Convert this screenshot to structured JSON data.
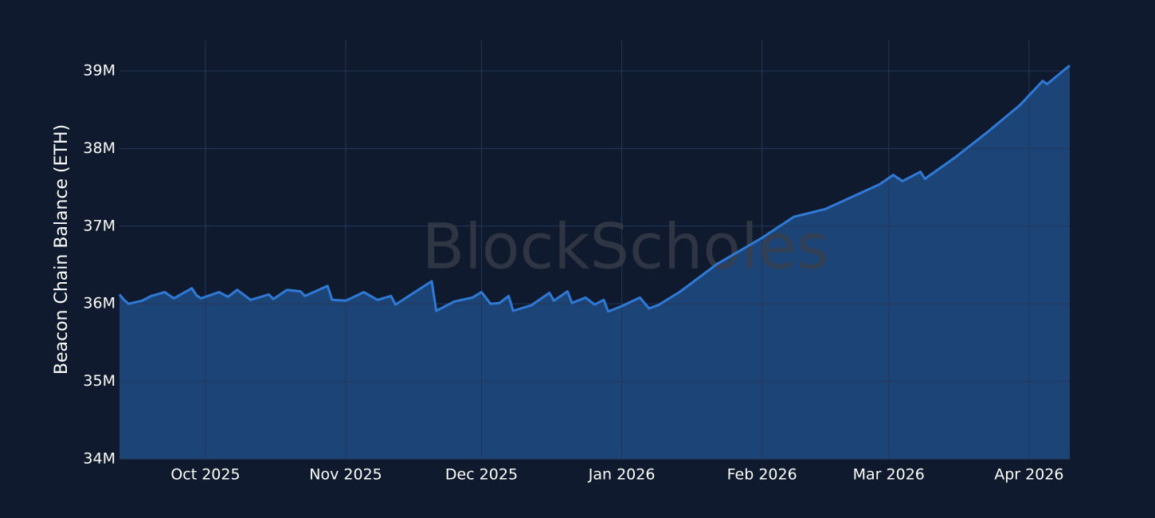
{
  "chart_data": {
    "type": "area",
    "y_label": "Beacon Chain Balance (ETH)",
    "watermark": "BlockScholes",
    "grid": true,
    "xlim": [
      "2025-09-12",
      "2026-04-10"
    ],
    "xticks": [
      {
        "value": "2025-10-01",
        "label": "Oct 2025"
      },
      {
        "value": "2025-11-01",
        "label": "Nov 2025"
      },
      {
        "value": "2025-12-01",
        "label": "Dec 2025"
      },
      {
        "value": "2026-01-01",
        "label": "Jan 2026"
      },
      {
        "value": "2026-02-01",
        "label": "Feb 2026"
      },
      {
        "value": "2026-03-01",
        "label": "Mar 2026"
      },
      {
        "value": "2026-04-01",
        "label": "Apr 2026"
      }
    ],
    "ylim": [
      34000000,
      39400000
    ],
    "yticks": [
      {
        "value": 34000000,
        "label": "34M"
      },
      {
        "value": 35000000,
        "label": "35M"
      },
      {
        "value": 36000000,
        "label": "36M"
      },
      {
        "value": 37000000,
        "label": "37M"
      },
      {
        "value": 38000000,
        "label": "38M"
      },
      {
        "value": 39000000,
        "label": "39M"
      }
    ],
    "series": [
      {
        "color": "#2f7ad6",
        "fill": "#1d4477",
        "x": [
          "2025-09-12",
          "2025-09-13",
          "2025-09-14",
          "2025-09-17",
          "2025-09-19",
          "2025-09-22",
          "2025-09-24",
          "2025-09-28",
          "2025-09-29",
          "2025-09-30",
          "2025-10-04",
          "2025-10-06",
          "2025-10-08",
          "2025-10-11",
          "2025-10-15",
          "2025-10-16",
          "2025-10-19",
          "2025-10-22",
          "2025-10-23",
          "2025-10-28",
          "2025-10-29",
          "2025-11-01",
          "2025-11-05",
          "2025-11-08",
          "2025-11-11",
          "2025-11-12",
          "2025-11-16",
          "2025-11-20",
          "2025-11-21",
          "2025-11-25",
          "2025-11-29",
          "2025-12-01",
          "2025-12-03",
          "2025-12-05",
          "2025-12-07",
          "2025-12-08",
          "2025-12-12",
          "2025-12-16",
          "2025-12-17",
          "2025-12-20",
          "2025-12-21",
          "2025-12-24",
          "2025-12-26",
          "2025-12-28",
          "2025-12-29",
          "2026-01-01",
          "2026-01-05",
          "2026-01-07",
          "2026-01-09",
          "2026-01-14",
          "2026-01-22",
          "2026-02-01",
          "2026-02-08",
          "2026-02-15",
          "2026-02-21",
          "2026-02-27",
          "2026-03-02",
          "2026-03-04",
          "2026-03-08",
          "2026-03-09",
          "2026-03-16",
          "2026-03-23",
          "2026-03-30",
          "2026-04-04",
          "2026-04-05",
          "2026-04-10"
        ],
        "values": [
          36120000,
          36050000,
          36000000,
          36040000,
          36100000,
          36150000,
          36070000,
          36200000,
          36110000,
          36070000,
          36150000,
          36090000,
          36180000,
          36050000,
          36120000,
          36060000,
          36180000,
          36160000,
          36100000,
          36230000,
          36050000,
          36040000,
          36150000,
          36050000,
          36100000,
          35990000,
          36140000,
          36290000,
          35910000,
          36030000,
          36080000,
          36150000,
          36000000,
          36010000,
          36100000,
          35910000,
          35980000,
          36140000,
          36040000,
          36160000,
          36010000,
          36080000,
          35990000,
          36050000,
          35900000,
          35970000,
          36080000,
          35940000,
          35980000,
          36160000,
          36510000,
          36850000,
          37120000,
          37220000,
          37380000,
          37540000,
          37660000,
          37580000,
          37700000,
          37610000,
          37900000,
          38220000,
          38560000,
          38870000,
          38830000,
          39070000
        ]
      }
    ]
  }
}
